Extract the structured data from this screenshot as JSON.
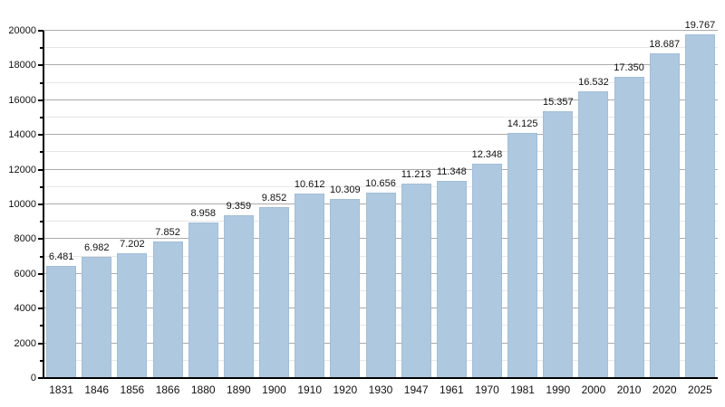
{
  "chart_data": {
    "type": "bar",
    "title": "",
    "xlabel": "",
    "ylabel": "",
    "categories": [
      "1831",
      "1846",
      "1856",
      "1866",
      "1880",
      "1890",
      "1900",
      "1910",
      "1920",
      "1930",
      "1947",
      "1961",
      "1970",
      "1981",
      "1990",
      "2000",
      "2010",
      "2020",
      "2025"
    ],
    "values": [
      6481,
      6982,
      7202,
      7852,
      8958,
      9359,
      9852,
      10612,
      10309,
      10656,
      11213,
      11348,
      12348,
      14125,
      15357,
      16532,
      17350,
      18687,
      19767
    ],
    "bar_labels": [
      "6.481",
      "6.982",
      "7.202",
      "7.852",
      "8.958",
      "9.359",
      "9.852",
      "10.612",
      "10.309",
      "10.656",
      "11.213",
      "11.348",
      "12.348",
      "14.125",
      "15.357",
      "16.532",
      "17.350",
      "18.687",
      "19.767"
    ],
    "ylim": [
      0,
      20000
    ],
    "ytick_step": 2000,
    "minor_grid_step": 1000,
    "ytick_labels": [
      "0",
      "2000",
      "4000",
      "6000",
      "8000",
      "10000",
      "12000",
      "14000",
      "16000",
      "18000",
      "20000"
    ],
    "grid": true,
    "legend": "none",
    "colors": {
      "bar_fill": "#aec8e0",
      "bar_border": "#a2bdd8",
      "grid_major": "#aaaaaa",
      "grid_minor": "#e7e7e7",
      "axis": "#000000",
      "text": "#111111",
      "background": "#ffffff"
    }
  }
}
